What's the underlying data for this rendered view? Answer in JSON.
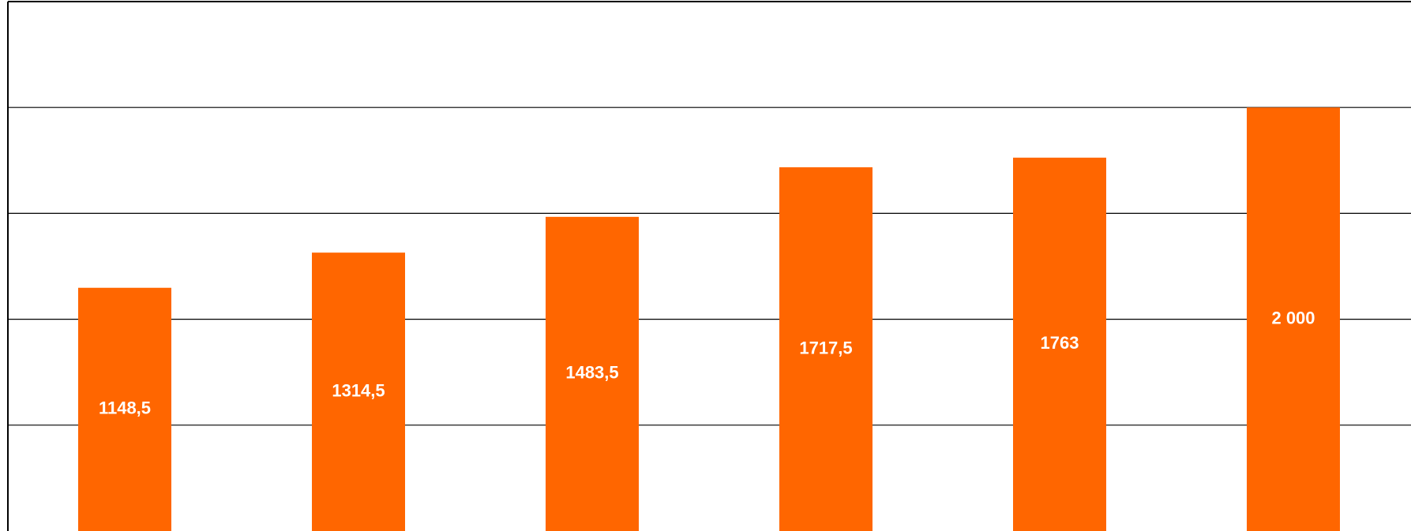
{
  "chart_data": {
    "type": "bar",
    "categories": [
      null,
      null,
      null,
      null,
      null,
      null
    ],
    "values": [
      1148.5,
      1314.5,
      1483.5,
      1717.5,
      1763,
      2000
    ],
    "value_labels": [
      "1148,5",
      "1314,5",
      "1483,5",
      "1717,5",
      "1763",
      "2 000"
    ],
    "color": "#ff6600",
    "ylim": [
      0,
      2500
    ],
    "yticks": [
      500,
      1000,
      1500,
      2000
    ],
    "grid": true
  }
}
